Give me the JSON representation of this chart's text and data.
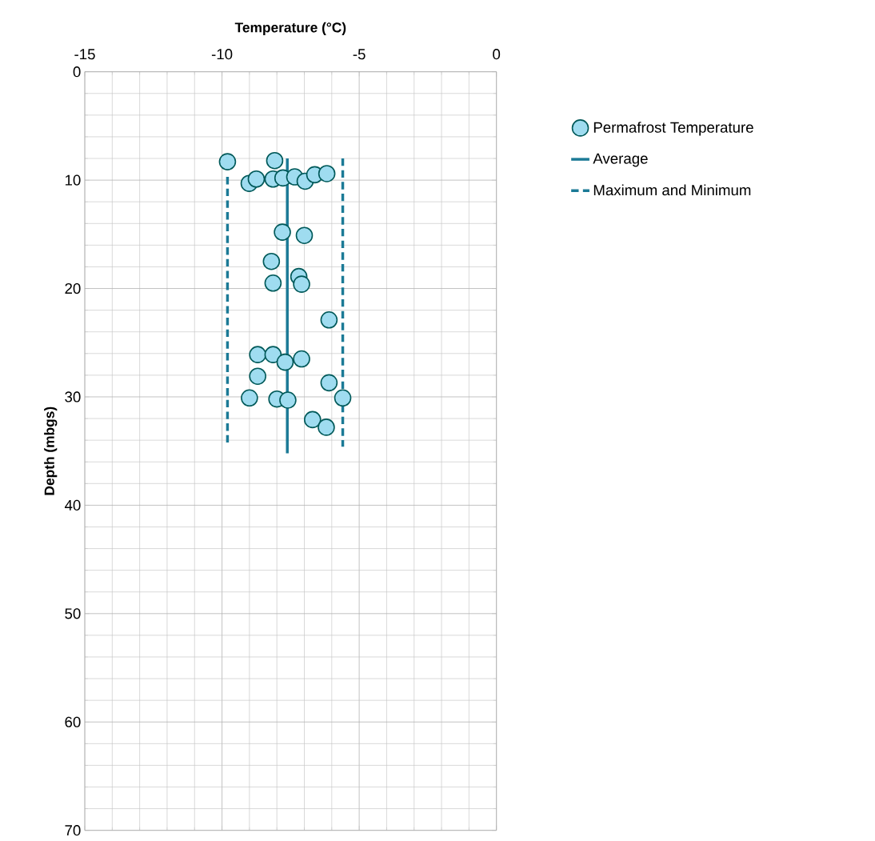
{
  "chart_data": {
    "type": "scatter",
    "xlabel": "Temperature (°C)",
    "ylabel": "Depth (mbgs)",
    "xlim": [
      -15,
      0
    ],
    "xticks": [
      -15,
      -10,
      -5,
      0
    ],
    "ylim": [
      70,
      0
    ],
    "yticks": [
      0,
      10,
      20,
      30,
      40,
      50,
      60,
      70
    ],
    "grid": true,
    "legend": "top right",
    "series": [
      {
        "name": "Permafrost Temperature",
        "marker": "circle",
        "color": "#9fdcf0",
        "x": [
          -9.8,
          -8.08,
          -9.01,
          -8.75,
          -8.14,
          -7.78,
          -7.35,
          -6.97,
          -6.62,
          -6.18,
          -7.8,
          -7.0,
          -8.2,
          -7.2,
          -8.14,
          -7.1,
          -6.1,
          -8.7,
          -8.14,
          -7.7,
          -7.1,
          -8.7,
          -6.1,
          -9.0,
          -8.0,
          -7.6,
          -5.6,
          -6.7,
          -6.2
        ],
        "values": [
          8.3,
          8.2,
          10.3,
          9.9,
          9.9,
          9.8,
          9.7,
          10.1,
          9.5,
          9.4,
          14.8,
          15.1,
          17.5,
          18.9,
          19.5,
          19.6,
          22.9,
          26.1,
          26.1,
          26.8,
          26.5,
          28.1,
          28.7,
          30.1,
          30.2,
          30.3,
          30.1,
          32.1,
          32.8
        ]
      },
      {
        "name": "Average",
        "type": "line",
        "marker": "none",
        "line_style": "solid",
        "color": "#1b7a96",
        "x": [
          -7.62,
          -7.62
        ],
        "values": [
          8.0,
          35.2
        ]
      },
      {
        "name": "Maximum and Minimum",
        "type": "line",
        "marker": "none",
        "line_style": "dashed",
        "color": "#1b7a96",
        "x": [
          -9.8,
          -9.8,
          null,
          -5.6,
          -5.6
        ],
        "values": [
          9.7,
          34.6,
          null,
          8.0,
          34.6
        ]
      }
    ]
  }
}
